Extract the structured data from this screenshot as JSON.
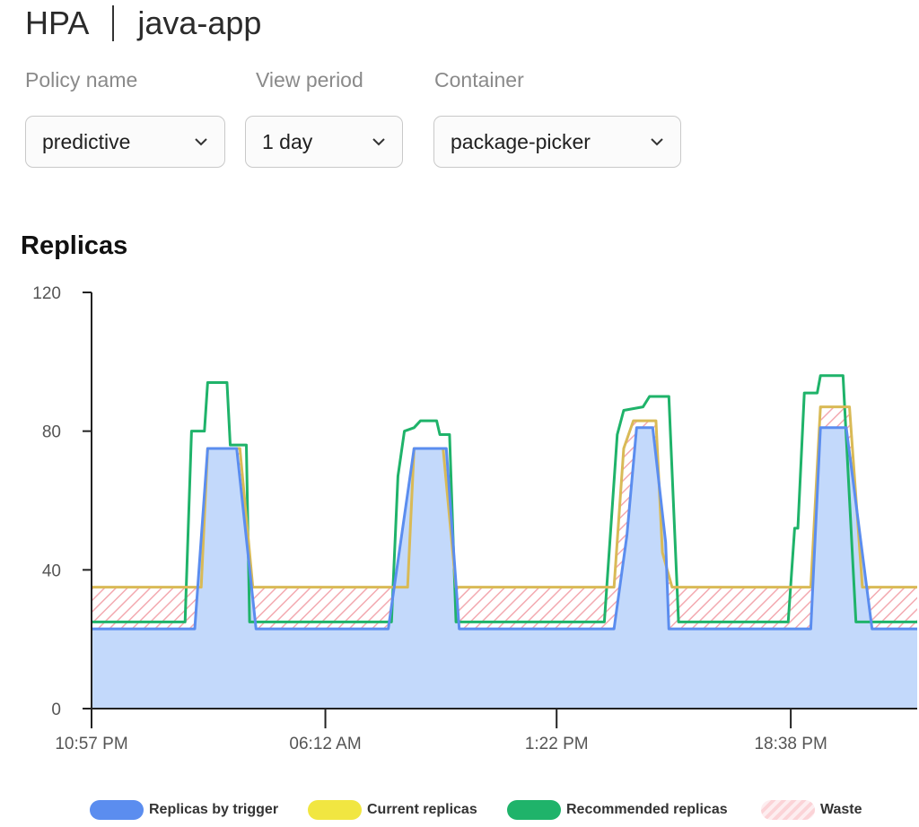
{
  "header": {
    "kind": "HPA",
    "app": "java-app"
  },
  "filters": {
    "policy": {
      "label": "Policy name",
      "value": "predictive"
    },
    "period": {
      "label": "View period",
      "value": "1 day"
    },
    "container": {
      "label": "Container",
      "value": "package-picker"
    }
  },
  "section_title": "Replicas",
  "colors": {
    "trigger_line": "#5b8def",
    "trigger_fill": "#c3d9fb",
    "current": "#d9ba56",
    "recommended": "#1fb36a",
    "waste": "#f3a9b0",
    "axis": "#222222"
  },
  "chart_data": {
    "type": "area",
    "title": "Replicas",
    "ylim": [
      0,
      120
    ],
    "y_ticks": [
      "120",
      "80",
      "40",
      "0"
    ],
    "y_tick_values": [
      120,
      80,
      40,
      0
    ],
    "x_tick_labels": [
      "10:57 PM",
      "06:12 AM",
      "1:22 PM",
      "18:38 PM"
    ],
    "x_tick_values": [
      0,
      7.25,
      14.42,
      21.68
    ],
    "xlim": [
      0,
      25.6
    ],
    "grid": false,
    "legend_position": "bottom",
    "series": [
      {
        "name": "Replicas by trigger",
        "points": [
          [
            0,
            23
          ],
          [
            3.2,
            23
          ],
          [
            3.6,
            75
          ],
          [
            4.5,
            75
          ],
          [
            5.1,
            23
          ],
          [
            9.2,
            23
          ],
          [
            10,
            75
          ],
          [
            11,
            75
          ],
          [
            11.4,
            23
          ],
          [
            16.2,
            23
          ],
          [
            16.6,
            50
          ],
          [
            16.9,
            81
          ],
          [
            17.4,
            81
          ],
          [
            17.8,
            48
          ],
          [
            17.9,
            23
          ],
          [
            22.3,
            23
          ],
          [
            22.6,
            81
          ],
          [
            23.4,
            81
          ],
          [
            24.2,
            23
          ],
          [
            25.6,
            23
          ]
        ]
      },
      {
        "name": "Current replicas",
        "points": [
          [
            0,
            35
          ],
          [
            3.4,
            35
          ],
          [
            3.6,
            75
          ],
          [
            4.6,
            75
          ],
          [
            5,
            35
          ],
          [
            9.8,
            35
          ],
          [
            10,
            75
          ],
          [
            10.9,
            75
          ],
          [
            11.3,
            35
          ],
          [
            16.2,
            35
          ],
          [
            16.5,
            75
          ],
          [
            16.8,
            83
          ],
          [
            17.5,
            83
          ],
          [
            17.7,
            45
          ],
          [
            18,
            35
          ],
          [
            22.3,
            35
          ],
          [
            22.6,
            87
          ],
          [
            23.5,
            87
          ],
          [
            23.9,
            35
          ],
          [
            25.6,
            35
          ]
        ]
      },
      {
        "name": "Recommended replicas",
        "points": [
          [
            0,
            25
          ],
          [
            2.9,
            25
          ],
          [
            3.1,
            80
          ],
          [
            3.5,
            80
          ],
          [
            3.6,
            94
          ],
          [
            4.2,
            94
          ],
          [
            4.3,
            76
          ],
          [
            4.8,
            76
          ],
          [
            4.9,
            25
          ],
          [
            9.3,
            25
          ],
          [
            9.5,
            67
          ],
          [
            9.7,
            80
          ],
          [
            10,
            81
          ],
          [
            10.2,
            83
          ],
          [
            10.7,
            83
          ],
          [
            10.8,
            79
          ],
          [
            11.1,
            79
          ],
          [
            11.3,
            25
          ],
          [
            15.9,
            25
          ],
          [
            16.3,
            79
          ],
          [
            16.5,
            86
          ],
          [
            17.1,
            87
          ],
          [
            17.3,
            90
          ],
          [
            17.9,
            90
          ],
          [
            18.2,
            25
          ],
          [
            21.6,
            25
          ],
          [
            21.8,
            52
          ],
          [
            21.9,
            52
          ],
          [
            22.1,
            91
          ],
          [
            22.5,
            91
          ],
          [
            22.6,
            96
          ],
          [
            23.3,
            96
          ],
          [
            23.7,
            25
          ],
          [
            25.6,
            25
          ]
        ]
      },
      {
        "name": "Waste"
      }
    ]
  }
}
